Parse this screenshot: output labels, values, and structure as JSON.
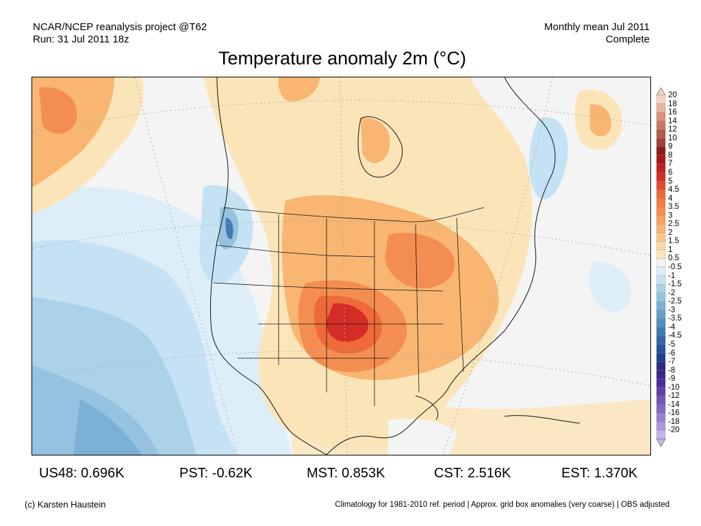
{
  "header": {
    "line1_left": "NCAR/NCEP reanalysis project @T62",
    "line2_left": "Run: 31 Jul 2011 18z",
    "line1_right": "Monthly mean Jul 2011",
    "line2_right": "Complete"
  },
  "title": "Temperature anomaly 2m (°C)",
  "legend": {
    "ticks": [
      "20",
      "18",
      "16",
      "14",
      "12",
      "10",
      "9",
      "8",
      "7",
      "6",
      "5",
      "4.5",
      "4",
      "3.5",
      "3",
      "2.5",
      "2",
      "1.5",
      "1",
      "0.5",
      "-0.5",
      "-1",
      "-1.5",
      "-2",
      "-2.5",
      "-3",
      "-3.5",
      "-4",
      "-4.5",
      "-5",
      "-6",
      "-7",
      "-8",
      "-9",
      "-10",
      "-12",
      "-14",
      "-16",
      "-18",
      "-20"
    ],
    "colors": [
      "#f3d3c3",
      "#e8b49c",
      "#d9927a",
      "#c87862",
      "#b45a4a",
      "#a0403a",
      "#8c1a1a",
      "#a81818",
      "#c0201e",
      "#d42c26",
      "#e44a30",
      "#ee6a3a",
      "#f27c42",
      "#f48e50",
      "#f6a25e",
      "#f8b672",
      "#f9c788",
      "#fad79e",
      "#fbe5b8",
      "#f2f2f2",
      "#ddeef9",
      "#c5e2f4",
      "#acd2ea",
      "#94c2e0",
      "#7cb0d4",
      "#66a0c8",
      "#5090bc",
      "#3e7cb2",
      "#3068a6",
      "#24549a",
      "#1c428c",
      "#2a2c80",
      "#3a2888",
      "#4c2c98",
      "#6040a8",
      "#7454b8",
      "#8668c6",
      "#9a80d2",
      "#b098de",
      "#c6b4ea"
    ],
    "colors_note": ""
  },
  "stats": [
    {
      "label": "US48: 0.696K"
    },
    {
      "label": "PST: -0.62K"
    },
    {
      "label": "MST: 0.853K"
    },
    {
      "label": "CST: 2.516K"
    },
    {
      "label": "EST: 1.370K"
    }
  ],
  "footer": {
    "left": "(c) Karsten Haustein",
    "right": "Climatology for 1981-2010 ref. period | Approx. grid box anomalies (very coarse) | OBS adjusted"
  }
}
